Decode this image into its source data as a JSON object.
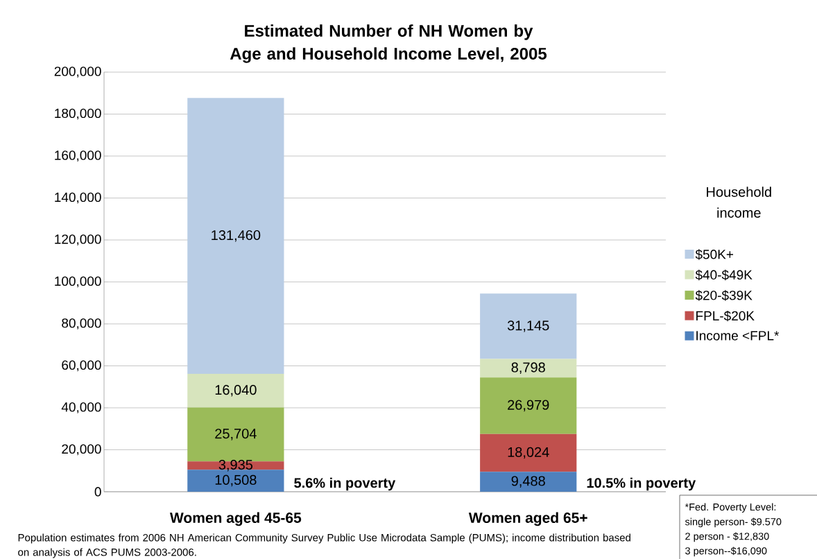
{
  "chart_data": {
    "type": "bar",
    "stacked": true,
    "title": "Estimated Number of NH Women by Age and Household Income Level, 2005",
    "categories": [
      "Women aged 45-65",
      "Women aged 65+"
    ],
    "series": [
      {
        "name": "Income <FPL*",
        "color": "#4f81bd",
        "values": [
          10508,
          9488
        ],
        "value_labels": [
          "10,508",
          "9,488"
        ]
      },
      {
        "name": "FPL-$20K",
        "color": "#c0504d",
        "values": [
          3935,
          18024
        ],
        "value_labels": [
          "3,935",
          "18,024"
        ]
      },
      {
        "name": "$20-$39K",
        "color": "#9bbb59",
        "values": [
          25704,
          26979
        ],
        "value_labels": [
          "25,704",
          "26,979"
        ]
      },
      {
        "name": "$40-$49K",
        "color": "#d7e4bd",
        "values": [
          16040,
          8798
        ],
        "value_labels": [
          "16,040",
          "8,798"
        ]
      },
      {
        "name": "$50K+",
        "color": "#b9cde5",
        "values": [
          131460,
          31145
        ],
        "value_labels": [
          "131,460",
          "31,145"
        ]
      }
    ],
    "ylim": [
      0,
      200000
    ],
    "yticks": [
      {
        "value": 0,
        "label": "0"
      },
      {
        "value": 20000,
        "label": "20,000"
      },
      {
        "value": 40000,
        "label": "40,000"
      },
      {
        "value": 60000,
        "label": "60,000"
      },
      {
        "value": 80000,
        "label": "80,000"
      },
      {
        "value": 100000,
        "label": "100,000"
      },
      {
        "value": 120000,
        "label": "120,000"
      },
      {
        "value": 140000,
        "label": "140,000"
      },
      {
        "value": 160000,
        "label": "160,000"
      },
      {
        "value": 180000,
        "label": "180,000"
      },
      {
        "value": 200000,
        "label": "200,000"
      }
    ],
    "grid": "y",
    "legend": "right",
    "legend_title": "Household income",
    "annotations": [
      "5.6% in poverty",
      "10.5% in poverty",
      "Population estimates from 2006 NH American Community Survey Public Use Microdata Sample (PUMS); income distribution based on analysis of ACS PUMS 2003-2006.",
      "*Fed. Poverty Level:",
      "single person- $9.570",
      "2 person - $12,830",
      "3 person--$16,090"
    ]
  }
}
